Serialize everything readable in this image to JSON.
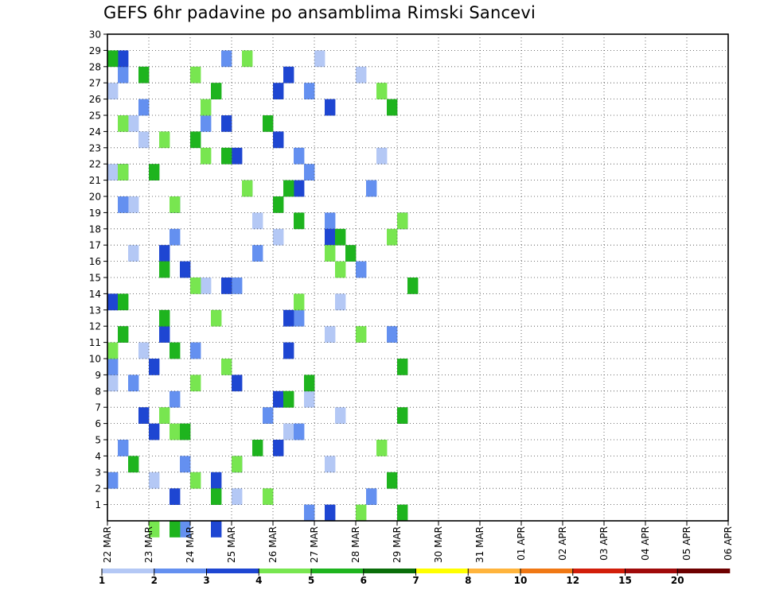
{
  "chart_data": {
    "type": "heatmap",
    "title": "GEFS 6hr padavine po ansamblima Rimski Sancevi",
    "x_ticks": [
      "22 MAR",
      "23 MAR",
      "24 MAR",
      "25 MAR",
      "26 MAR",
      "27 MAR",
      "28 MAR",
      "29 MAR",
      "30 MAR",
      "31 MAR",
      "01 APR",
      "02 APR",
      "03 APR",
      "04 APR",
      "05 APR",
      "06 APR"
    ],
    "y_ticks": [
      1,
      2,
      3,
      4,
      5,
      6,
      7,
      8,
      9,
      10,
      11,
      12,
      13,
      14,
      15,
      16,
      17,
      18,
      19,
      20,
      21,
      22,
      23,
      24,
      25,
      26,
      27,
      28,
      29,
      30
    ],
    "grid": true,
    "legend": {
      "placement": "bottom",
      "thresholds": [
        "1",
        "2",
        "3",
        "4",
        "5",
        "6",
        "7",
        "8",
        "10",
        "12",
        "15",
        "20"
      ],
      "colors": [
        "#b4c8f5",
        "#6490f0",
        "#1e46d2",
        "#78e650",
        "#1eb41e",
        "#0a6e0a",
        "#ffff00",
        "#ffb43c",
        "#f07814",
        "#d21e0a",
        "#a00a0a",
        "#6e0000"
      ]
    },
    "cells": [
      [
        0,
        1,
        19
      ],
      [
        0,
        2,
        12
      ],
      [
        0,
        3,
        4
      ],
      [
        0,
        4,
        21
      ],
      [
        0,
        5,
        1
      ],
      [
        0,
        6,
        17
      ],
      [
        0,
        7,
        22
      ],
      [
        0,
        8,
        19
      ],
      [
        0,
        9,
        0
      ],
      [
        0,
        10,
        11
      ],
      [
        0,
        11,
        3
      ],
      [
        0,
        12,
        21
      ],
      [
        0,
        13,
        17
      ],
      [
        0,
        14,
        22
      ],
      [
        0,
        15,
        9
      ],
      [
        0,
        16,
        24
      ],
      [
        0,
        17,
        2
      ],
      [
        0,
        18,
        16
      ],
      [
        0,
        19,
        14
      ],
      [
        0,
        20,
        2
      ],
      [
        0,
        21,
        13
      ],
      [
        0,
        22,
        0
      ],
      [
        0,
        23,
        26
      ],
      [
        0,
        24,
        3
      ],
      [
        0,
        25,
        2
      ],
      [
        0,
        26,
        9
      ],
      [
        0,
        27,
        0
      ],
      [
        0,
        28,
        24
      ],
      [
        0,
        29,
        20
      ],
      [
        1,
        0,
        7
      ],
      [
        1,
        1,
        19
      ],
      [
        1,
        2,
        25
      ],
      [
        1,
        3,
        0
      ],
      [
        1,
        4,
        7
      ],
      [
        1,
        5,
        1
      ],
      [
        1,
        6,
        18
      ],
      [
        1,
        7,
        15
      ],
      [
        1,
        8,
        6
      ],
      [
        1,
        9,
        2
      ],
      [
        1,
        10,
        0
      ],
      [
        1,
        11,
        8
      ],
      [
        1,
        12,
        27
      ],
      [
        1,
        13,
        18
      ],
      [
        1,
        14,
        0
      ],
      [
        1,
        15,
        12
      ],
      [
        1,
        16,
        24
      ],
      [
        1,
        17,
        14
      ],
      [
        1,
        18,
        6
      ],
      [
        1,
        19,
        21
      ],
      [
        1,
        20,
        1
      ],
      [
        1,
        21,
        25
      ],
      [
        1,
        22,
        19
      ],
      [
        1,
        23,
        18
      ],
      [
        1,
        24,
        16
      ],
      [
        1,
        25,
        9
      ],
      [
        1,
        26,
        3
      ],
      [
        1,
        27,
        19
      ],
      [
        1,
        28,
        1
      ],
      [
        1,
        29,
        11
      ],
      [
        2,
        0,
        10
      ],
      [
        2,
        1,
        21
      ],
      [
        2,
        2,
        6
      ],
      [
        2,
        3,
        10
      ],
      [
        2,
        4,
        12
      ],
      [
        2,
        5,
        16
      ],
      [
        2,
        6,
        4
      ],
      [
        2,
        7,
        3
      ],
      [
        2,
        8,
        16
      ],
      [
        2,
        9,
        12
      ],
      [
        2,
        10,
        4
      ],
      [
        2,
        11,
        17
      ],
      [
        2,
        12,
        5
      ],
      [
        2,
        13,
        17
      ],
      [
        2,
        14,
        0
      ],
      [
        2,
        15,
        11
      ],
      [
        2,
        16,
        7
      ],
      [
        2,
        17,
        5
      ],
      [
        2,
        18,
        21
      ],
      [
        2,
        19,
        28
      ],
      [
        2,
        20,
        6
      ],
      [
        2,
        21,
        18
      ],
      [
        2,
        22,
        1
      ],
      [
        2,
        23,
        12
      ],
      [
        2,
        24,
        16
      ],
      [
        2,
        25,
        11
      ],
      [
        2,
        26,
        21
      ],
      [
        2,
        27,
        16
      ],
      [
        2,
        28,
        17
      ],
      [
        2,
        29,
        1
      ],
      [
        3,
        0,
        4
      ],
      [
        3,
        1,
        24
      ],
      [
        3,
        2,
        15
      ],
      [
        3,
        3,
        8
      ],
      [
        3,
        4,
        12
      ],
      [
        3,
        5,
        26
      ],
      [
        3,
        6,
        6
      ],
      [
        3,
        7,
        5
      ],
      [
        3,
        8,
        17
      ],
      [
        3,
        9,
        8
      ],
      [
        3,
        10,
        11
      ],
      [
        3,
        11,
        0
      ],
      [
        3,
        12,
        24
      ],
      [
        3,
        13,
        10
      ],
      [
        3,
        14,
        18
      ],
      [
        3,
        15,
        8
      ],
      [
        3,
        16,
        22
      ],
      [
        3,
        17,
        21
      ],
      [
        3,
        18,
        27
      ],
      [
        3,
        19,
        28
      ],
      [
        3,
        20,
        6
      ],
      [
        3,
        21,
        13
      ],
      [
        3,
        22,
        1
      ],
      [
        3,
        23,
        9
      ],
      [
        3,
        24,
        5
      ],
      [
        3,
        25,
        1
      ],
      [
        3,
        26,
        9
      ],
      [
        3,
        27,
        26
      ],
      [
        3,
        28,
        8
      ],
      [
        3,
        29,
        13
      ],
      [
        4,
        0,
        6
      ],
      [
        4,
        1,
        28
      ],
      [
        4,
        2,
        10
      ],
      [
        4,
        3,
        27
      ],
      [
        4,
        4,
        2
      ],
      [
        4,
        5,
        14
      ],
      [
        4,
        6,
        7
      ],
      [
        4,
        7,
        28
      ],
      [
        4,
        8,
        17
      ],
      [
        4,
        9,
        19
      ],
      [
        4,
        10,
        28
      ],
      [
        4,
        11,
        6
      ],
      [
        4,
        12,
        1
      ],
      [
        4,
        13,
        5
      ],
      [
        4,
        14,
        1
      ],
      [
        4,
        15,
        29
      ],
      [
        4,
        16,
        5
      ],
      [
        4,
        17,
        23
      ],
      [
        4,
        18,
        22
      ],
      [
        4,
        19,
        18
      ],
      [
        4,
        20,
        16
      ],
      [
        4,
        21,
        17
      ],
      [
        4,
        22,
        4
      ],
      [
        4,
        23,
        11
      ],
      [
        4,
        24,
        8
      ],
      [
        4,
        25,
        15
      ],
      [
        4,
        26,
        27
      ],
      [
        4,
        27,
        10
      ],
      [
        4,
        28,
        3
      ],
      [
        4,
        29,
        0
      ]
    ]
  }
}
